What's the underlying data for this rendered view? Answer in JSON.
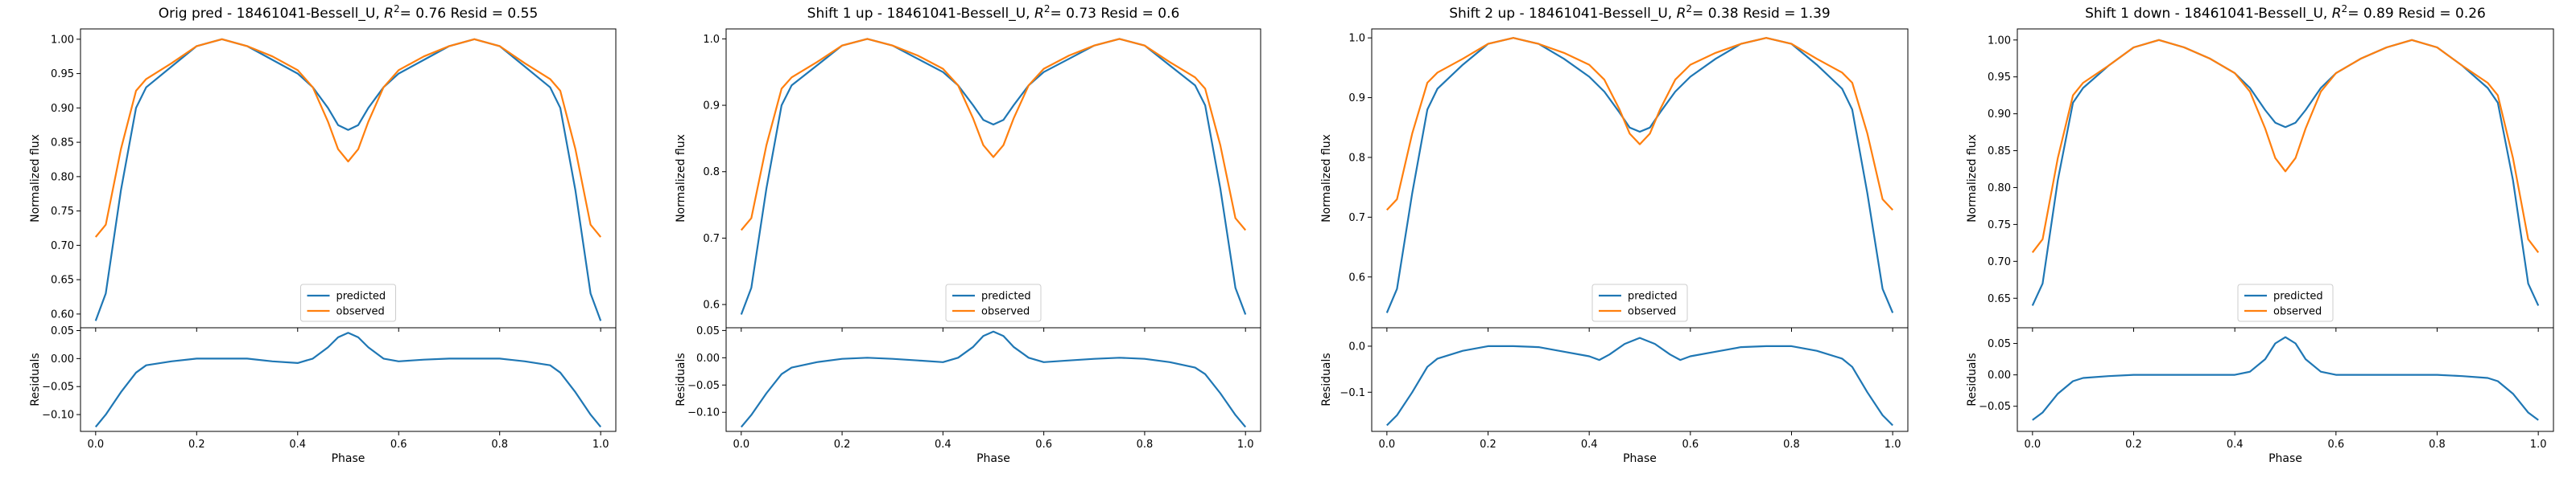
{
  "colors": {
    "predicted": "#1f77b4",
    "observed": "#ff7f0e",
    "axes": "#000000",
    "legend_border": "#cccccc"
  },
  "legend": {
    "predicted": "predicted",
    "observed": "observed",
    "placement": "lower-center"
  },
  "chart_data": [
    {
      "type": "line",
      "title": "Orig pred - 18461041-Bessell_U, R² = 0.76 Resid = 0.55",
      "title_parts": {
        "prefix": "Orig pred - 18461041-Bessell_U, ",
        "r2_value": "= 0.76",
        "resid": " Resid = 0.55"
      },
      "ylabel": "Normalized flux",
      "resid_ylabel": "Residuals",
      "xlabel": "Phase",
      "xlim": [
        -0.03,
        1.03
      ],
      "ylim": [
        0.58,
        1.015
      ],
      "resid_ylim": [
        -0.13,
        0.055
      ],
      "yticks": [
        0.6,
        0.65,
        0.7,
        0.75,
        0.8,
        0.85,
        0.9,
        0.95,
        1.0
      ],
      "ytick_labels": [
        "0.60",
        "0.65",
        "0.70",
        "0.75",
        "0.80",
        "0.85",
        "0.90",
        "0.95",
        "1.00"
      ],
      "resid_yticks": [
        -0.1,
        -0.05,
        0.0,
        0.05
      ],
      "resid_ytick_labels": [
        "−0.10",
        "−0.05",
        "0.00",
        "0.05"
      ],
      "xticks": [
        0.0,
        0.2,
        0.4,
        0.6,
        0.8,
        1.0
      ],
      "xtick_labels": [
        "0.0",
        "0.2",
        "0.4",
        "0.6",
        "0.8",
        "1.0"
      ],
      "series": [
        {
          "name": "predicted",
          "x": [
            0.0,
            0.02,
            0.05,
            0.08,
            0.1,
            0.15,
            0.2,
            0.25,
            0.3,
            0.35,
            0.4,
            0.43,
            0.46,
            0.48,
            0.5,
            0.52,
            0.54,
            0.57,
            0.6,
            0.65,
            0.7,
            0.75,
            0.8,
            0.85,
            0.9,
            0.92,
            0.95,
            0.98,
            1.0
          ],
          "y": [
            0.59,
            0.63,
            0.78,
            0.9,
            0.93,
            0.96,
            0.99,
            1.0,
            0.99,
            0.97,
            0.95,
            0.93,
            0.9,
            0.875,
            0.868,
            0.875,
            0.9,
            0.93,
            0.95,
            0.97,
            0.99,
            1.0,
            0.99,
            0.96,
            0.93,
            0.9,
            0.78,
            0.63,
            0.59
          ]
        },
        {
          "name": "observed",
          "x": [
            0.0,
            0.02,
            0.05,
            0.08,
            0.1,
            0.15,
            0.2,
            0.25,
            0.3,
            0.35,
            0.4,
            0.43,
            0.46,
            0.48,
            0.5,
            0.52,
            0.54,
            0.57,
            0.6,
            0.65,
            0.7,
            0.75,
            0.8,
            0.85,
            0.9,
            0.92,
            0.95,
            0.98,
            1.0
          ],
          "y": [
            0.712,
            0.73,
            0.84,
            0.925,
            0.942,
            0.965,
            0.99,
            1.0,
            0.99,
            0.975,
            0.955,
            0.93,
            0.88,
            0.84,
            0.822,
            0.84,
            0.88,
            0.93,
            0.955,
            0.975,
            0.99,
            1.0,
            0.99,
            0.965,
            0.942,
            0.925,
            0.84,
            0.73,
            0.712
          ]
        }
      ],
      "residuals": {
        "x": [
          0.0,
          0.02,
          0.05,
          0.08,
          0.1,
          0.15,
          0.2,
          0.25,
          0.3,
          0.35,
          0.4,
          0.43,
          0.46,
          0.48,
          0.5,
          0.52,
          0.54,
          0.57,
          0.6,
          0.65,
          0.7,
          0.75,
          0.8,
          0.85,
          0.9,
          0.92,
          0.95,
          0.98,
          1.0
        ],
        "y": [
          -0.122,
          -0.1,
          -0.06,
          -0.025,
          -0.012,
          -0.005,
          0.0,
          0.0,
          0.0,
          -0.005,
          -0.008,
          0.0,
          0.02,
          0.038,
          0.046,
          0.038,
          0.02,
          0.0,
          -0.005,
          -0.002,
          0.0,
          0.0,
          0.0,
          -0.005,
          -0.012,
          -0.025,
          -0.06,
          -0.1,
          -0.122
        ]
      }
    },
    {
      "type": "line",
      "title": "Shift 1 up - 18461041-Bessell_U, R² = 0.73 Resid = 0.6",
      "title_parts": {
        "prefix": "Shift 1 up - 18461041-Bessell_U, ",
        "r2_value": "= 0.73",
        "resid": " Resid = 0.6"
      },
      "ylabel": "Normalized flux",
      "resid_ylabel": "Residuals",
      "xlabel": "Phase",
      "xlim": [
        -0.03,
        1.03
      ],
      "ylim": [
        0.565,
        1.015
      ],
      "resid_ylim": [
        -0.135,
        0.055
      ],
      "yticks": [
        0.6,
        0.7,
        0.8,
        0.9,
        1.0
      ],
      "ytick_labels": [
        "0.6",
        "0.7",
        "0.8",
        "0.9",
        "1.0"
      ],
      "resid_yticks": [
        -0.1,
        -0.05,
        0.0,
        0.05
      ],
      "resid_ytick_labels": [
        "−0.10",
        "−0.05",
        "0.00",
        "0.05"
      ],
      "xticks": [
        0.0,
        0.2,
        0.4,
        0.6,
        0.8,
        1.0
      ],
      "xtick_labels": [
        "0.0",
        "0.2",
        "0.4",
        "0.6",
        "0.8",
        "1.0"
      ],
      "series": [
        {
          "name": "predicted",
          "x": [
            0.0,
            0.02,
            0.05,
            0.08,
            0.1,
            0.15,
            0.2,
            0.25,
            0.3,
            0.35,
            0.4,
            0.43,
            0.46,
            0.48,
            0.5,
            0.52,
            0.54,
            0.57,
            0.6,
            0.65,
            0.7,
            0.75,
            0.8,
            0.85,
            0.9,
            0.92,
            0.95,
            0.98,
            1.0
          ],
          "y": [
            0.585,
            0.625,
            0.775,
            0.9,
            0.93,
            0.96,
            0.99,
            1.0,
            0.99,
            0.97,
            0.95,
            0.93,
            0.9,
            0.878,
            0.871,
            0.878,
            0.9,
            0.93,
            0.95,
            0.97,
            0.99,
            1.0,
            0.99,
            0.96,
            0.93,
            0.9,
            0.775,
            0.625,
            0.585
          ]
        },
        {
          "name": "observed",
          "x": [
            0.0,
            0.02,
            0.05,
            0.08,
            0.1,
            0.15,
            0.2,
            0.25,
            0.3,
            0.35,
            0.4,
            0.43,
            0.46,
            0.48,
            0.5,
            0.52,
            0.54,
            0.57,
            0.6,
            0.65,
            0.7,
            0.75,
            0.8,
            0.85,
            0.9,
            0.92,
            0.95,
            0.98,
            1.0
          ],
          "y": [
            0.712,
            0.73,
            0.84,
            0.925,
            0.942,
            0.965,
            0.99,
            1.0,
            0.99,
            0.975,
            0.955,
            0.93,
            0.88,
            0.84,
            0.822,
            0.84,
            0.88,
            0.93,
            0.955,
            0.975,
            0.99,
            1.0,
            0.99,
            0.965,
            0.942,
            0.925,
            0.84,
            0.73,
            0.712
          ]
        }
      ],
      "residuals": {
        "x": [
          0.0,
          0.02,
          0.05,
          0.08,
          0.1,
          0.15,
          0.2,
          0.25,
          0.3,
          0.35,
          0.4,
          0.43,
          0.46,
          0.48,
          0.5,
          0.52,
          0.54,
          0.57,
          0.6,
          0.65,
          0.7,
          0.75,
          0.8,
          0.85,
          0.9,
          0.92,
          0.95,
          0.98,
          1.0
        ],
        "y": [
          -0.127,
          -0.105,
          -0.065,
          -0.03,
          -0.018,
          -0.008,
          -0.002,
          0.0,
          -0.002,
          -0.005,
          -0.008,
          0.0,
          0.02,
          0.04,
          0.048,
          0.04,
          0.02,
          0.0,
          -0.008,
          -0.005,
          -0.002,
          0.0,
          -0.002,
          -0.008,
          -0.018,
          -0.03,
          -0.065,
          -0.105,
          -0.127
        ]
      }
    },
    {
      "type": "line",
      "title": "Shift 2 up - 18461041-Bessell_U, R² = 0.38 Resid = 1.39",
      "title_parts": {
        "prefix": "Shift 2 up - 18461041-Bessell_U, ",
        "r2_value": "= 0.38",
        "resid": " Resid = 1.39"
      },
      "ylabel": "Normalized flux",
      "resid_ylabel": "Residuals",
      "xlabel": "Phase",
      "xlim": [
        -0.03,
        1.03
      ],
      "ylim": [
        0.515,
        1.015
      ],
      "resid_ylim": [
        -0.185,
        0.04
      ],
      "yticks": [
        0.6,
        0.7,
        0.8,
        0.9,
        1.0
      ],
      "ytick_labels": [
        "0.6",
        "0.7",
        "0.8",
        "0.9",
        "1.0"
      ],
      "resid_yticks": [
        -0.1,
        0.0
      ],
      "resid_ytick_labels": [
        "−0.1",
        "0.0"
      ],
      "xticks": [
        0.0,
        0.2,
        0.4,
        0.6,
        0.8,
        1.0
      ],
      "xtick_labels": [
        "0.0",
        "0.2",
        "0.4",
        "0.6",
        "0.8",
        "1.0"
      ],
      "series": [
        {
          "name": "predicted",
          "x": [
            0.0,
            0.02,
            0.05,
            0.08,
            0.1,
            0.15,
            0.2,
            0.25,
            0.3,
            0.35,
            0.4,
            0.43,
            0.46,
            0.48,
            0.5,
            0.52,
            0.54,
            0.57,
            0.6,
            0.65,
            0.7,
            0.75,
            0.8,
            0.85,
            0.9,
            0.92,
            0.95,
            0.98,
            1.0
          ],
          "y": [
            0.54,
            0.58,
            0.74,
            0.88,
            0.915,
            0.955,
            0.99,
            1.0,
            0.99,
            0.965,
            0.935,
            0.91,
            0.875,
            0.85,
            0.843,
            0.85,
            0.875,
            0.91,
            0.935,
            0.965,
            0.99,
            1.0,
            0.99,
            0.955,
            0.915,
            0.88,
            0.74,
            0.58,
            0.54
          ]
        },
        {
          "name": "observed",
          "x": [
            0.0,
            0.02,
            0.05,
            0.08,
            0.1,
            0.15,
            0.2,
            0.25,
            0.3,
            0.35,
            0.4,
            0.43,
            0.46,
            0.48,
            0.5,
            0.52,
            0.54,
            0.57,
            0.6,
            0.65,
            0.7,
            0.75,
            0.8,
            0.85,
            0.9,
            0.92,
            0.95,
            0.98,
            1.0
          ],
          "y": [
            0.712,
            0.73,
            0.84,
            0.925,
            0.942,
            0.965,
            0.99,
            1.0,
            0.99,
            0.975,
            0.955,
            0.93,
            0.88,
            0.84,
            0.822,
            0.84,
            0.88,
            0.93,
            0.955,
            0.975,
            0.99,
            1.0,
            0.99,
            0.965,
            0.942,
            0.925,
            0.84,
            0.73,
            0.712
          ]
        }
      ],
      "residuals": {
        "x": [
          0.0,
          0.02,
          0.05,
          0.08,
          0.1,
          0.15,
          0.2,
          0.25,
          0.3,
          0.35,
          0.4,
          0.42,
          0.44,
          0.47,
          0.5,
          0.53,
          0.56,
          0.58,
          0.6,
          0.65,
          0.7,
          0.75,
          0.8,
          0.85,
          0.9,
          0.92,
          0.95,
          0.98,
          1.0
        ],
        "y": [
          -0.172,
          -0.15,
          -0.1,
          -0.045,
          -0.027,
          -0.01,
          0.0,
          0.0,
          -0.002,
          -0.012,
          -0.022,
          -0.03,
          -0.018,
          0.005,
          0.018,
          0.005,
          -0.018,
          -0.03,
          -0.022,
          -0.012,
          -0.002,
          0.0,
          0.0,
          -0.01,
          -0.027,
          -0.045,
          -0.1,
          -0.15,
          -0.172
        ]
      }
    },
    {
      "type": "line",
      "title": "Shift 1 down - 18461041-Bessell_U, R² = 0.89 Resid = 0.26",
      "title_parts": {
        "prefix": "Shift 1 down - 18461041-Bessell_U, ",
        "r2_value": "= 0.89",
        "resid": " Resid = 0.26"
      },
      "ylabel": "Normalized flux",
      "resid_ylabel": "Residuals",
      "xlabel": "Phase",
      "xlim": [
        -0.03,
        1.03
      ],
      "ylim": [
        0.61,
        1.015
      ],
      "resid_ylim": [
        -0.09,
        0.075
      ],
      "yticks": [
        0.65,
        0.7,
        0.75,
        0.8,
        0.85,
        0.9,
        0.95,
        1.0
      ],
      "ytick_labels": [
        "0.65",
        "0.70",
        "0.75",
        "0.80",
        "0.85",
        "0.90",
        "0.95",
        "1.00"
      ],
      "resid_yticks": [
        -0.05,
        0.0,
        0.05
      ],
      "resid_ytick_labels": [
        "−0.05",
        "0.00",
        "0.05"
      ],
      "xticks": [
        0.0,
        0.2,
        0.4,
        0.6,
        0.8,
        1.0
      ],
      "xtick_labels": [
        "0.0",
        "0.2",
        "0.4",
        "0.6",
        "0.8",
        "1.0"
      ],
      "series": [
        {
          "name": "predicted",
          "x": [
            0.0,
            0.02,
            0.05,
            0.08,
            0.1,
            0.15,
            0.2,
            0.25,
            0.3,
            0.35,
            0.4,
            0.43,
            0.46,
            0.48,
            0.5,
            0.52,
            0.54,
            0.57,
            0.6,
            0.65,
            0.7,
            0.75,
            0.8,
            0.85,
            0.9,
            0.92,
            0.95,
            0.98,
            1.0
          ],
          "y": [
            0.64,
            0.67,
            0.81,
            0.915,
            0.935,
            0.965,
            0.99,
            1.0,
            0.99,
            0.975,
            0.955,
            0.935,
            0.905,
            0.888,
            0.882,
            0.888,
            0.905,
            0.935,
            0.955,
            0.975,
            0.99,
            1.0,
            0.99,
            0.965,
            0.935,
            0.915,
            0.81,
            0.67,
            0.64
          ]
        },
        {
          "name": "observed",
          "x": [
            0.0,
            0.02,
            0.05,
            0.08,
            0.1,
            0.15,
            0.2,
            0.25,
            0.3,
            0.35,
            0.4,
            0.43,
            0.46,
            0.48,
            0.5,
            0.52,
            0.54,
            0.57,
            0.6,
            0.65,
            0.7,
            0.75,
            0.8,
            0.85,
            0.9,
            0.92,
            0.95,
            0.98,
            1.0
          ],
          "y": [
            0.712,
            0.73,
            0.84,
            0.925,
            0.942,
            0.965,
            0.99,
            1.0,
            0.99,
            0.975,
            0.955,
            0.93,
            0.88,
            0.84,
            0.822,
            0.84,
            0.88,
            0.93,
            0.955,
            0.975,
            0.99,
            1.0,
            0.99,
            0.965,
            0.942,
            0.925,
            0.84,
            0.73,
            0.712
          ]
        }
      ],
      "residuals": {
        "x": [
          0.0,
          0.02,
          0.05,
          0.08,
          0.1,
          0.15,
          0.2,
          0.25,
          0.3,
          0.35,
          0.4,
          0.43,
          0.46,
          0.48,
          0.5,
          0.52,
          0.54,
          0.57,
          0.6,
          0.65,
          0.7,
          0.75,
          0.8,
          0.85,
          0.9,
          0.92,
          0.95,
          0.98,
          1.0
        ],
        "y": [
          -0.072,
          -0.06,
          -0.03,
          -0.01,
          -0.005,
          -0.002,
          0.0,
          0.0,
          0.0,
          0.0,
          0.0,
          0.005,
          0.025,
          0.05,
          0.06,
          0.05,
          0.025,
          0.005,
          0.0,
          0.0,
          0.0,
          0.0,
          0.0,
          -0.002,
          -0.005,
          -0.01,
          -0.03,
          -0.06,
          -0.072
        ]
      }
    }
  ]
}
